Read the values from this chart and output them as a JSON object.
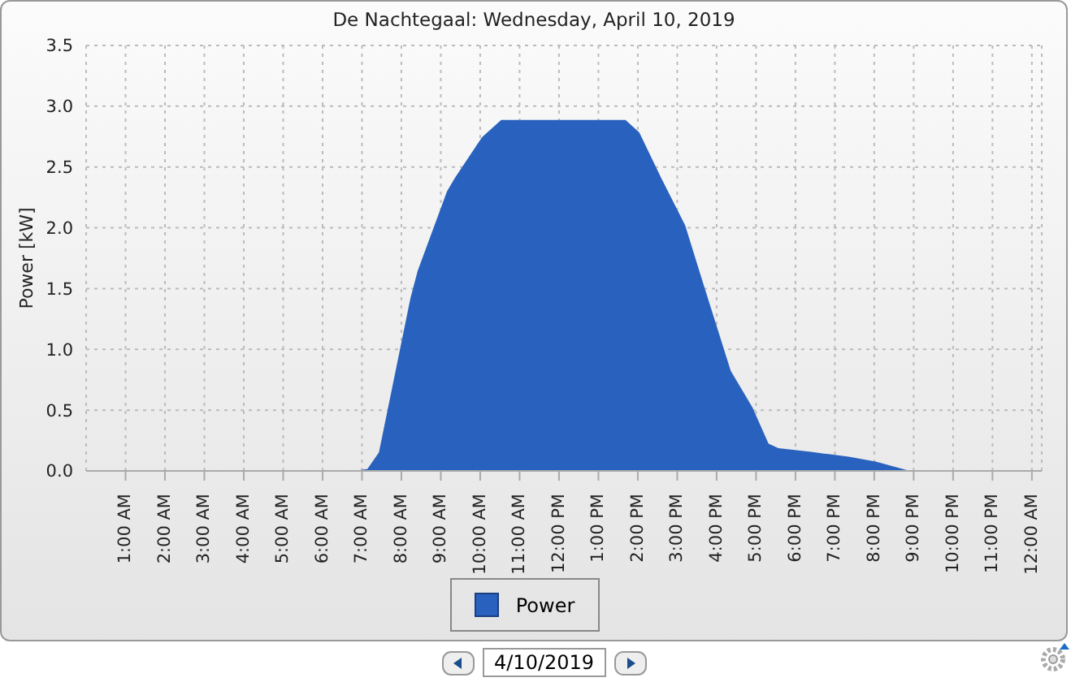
{
  "chart_data": {
    "type": "area",
    "title": "De Nachtegaal: Wednesday, April 10, 2019",
    "ylabel": "Power [kW]",
    "series": [
      {
        "name": "Power",
        "color": "#2962be",
        "x": [
          6.95,
          7.15,
          7.45,
          8.25,
          8.43,
          9.18,
          9.38,
          10.06,
          10.54,
          13.68,
          14.02,
          14.57,
          15.18,
          15.65,
          16.34,
          16.89,
          17.3,
          17.57,
          18.39,
          19.35,
          20.03,
          20.82
        ],
        "values": [
          0,
          0.01,
          0.15,
          1.42,
          1.64,
          2.3,
          2.41,
          2.74,
          2.88,
          2.88,
          2.78,
          2.41,
          2.02,
          1.53,
          0.82,
          0.52,
          0.22,
          0.18,
          0.15,
          0.11,
          0.07,
          0
        ]
      }
    ],
    "xlim": [
      0,
      24.25
    ],
    "xticks": [
      {
        "value": 1,
        "label": "1:00 AM"
      },
      {
        "value": 2,
        "label": "2:00 AM"
      },
      {
        "value": 3,
        "label": "3:00 AM"
      },
      {
        "value": 4,
        "label": "4:00 AM"
      },
      {
        "value": 5,
        "label": "5:00 AM"
      },
      {
        "value": 6,
        "label": "6:00 AM"
      },
      {
        "value": 7,
        "label": "7:00 AM"
      },
      {
        "value": 8,
        "label": "8:00 AM"
      },
      {
        "value": 9,
        "label": "9:00 AM"
      },
      {
        "value": 10,
        "label": "10:00 AM"
      },
      {
        "value": 11,
        "label": "11:00 AM"
      },
      {
        "value": 12,
        "label": "12:00 PM"
      },
      {
        "value": 13,
        "label": "1:00 PM"
      },
      {
        "value": 14,
        "label": "2:00 PM"
      },
      {
        "value": 15,
        "label": "3:00 PM"
      },
      {
        "value": 16,
        "label": "4:00 PM"
      },
      {
        "value": 17,
        "label": "5:00 PM"
      },
      {
        "value": 18,
        "label": "6:00 PM"
      },
      {
        "value": 19,
        "label": "7:00 PM"
      },
      {
        "value": 20,
        "label": "8:00 PM"
      },
      {
        "value": 21,
        "label": "9:00 PM"
      },
      {
        "value": 22,
        "label": "10:00 PM"
      },
      {
        "value": 23,
        "label": "11:00 PM"
      },
      {
        "value": 24,
        "label": "12:00 AM"
      }
    ],
    "ylim": [
      0,
      3.5
    ],
    "yticks": [
      {
        "value": 0,
        "label": "0.0"
      },
      {
        "value": 0.5,
        "label": "0.5"
      },
      {
        "value": 1,
        "label": "1.0"
      },
      {
        "value": 1.5,
        "label": "1.5"
      },
      {
        "value": 2,
        "label": "2.0"
      },
      {
        "value": 2.5,
        "label": "2.5"
      },
      {
        "value": 3,
        "label": "3.0"
      },
      {
        "value": 3.5,
        "label": "3.5"
      }
    ],
    "grid": true,
    "legend": "bottom",
    "annotations": [
      "4/10/2019"
    ]
  }
}
